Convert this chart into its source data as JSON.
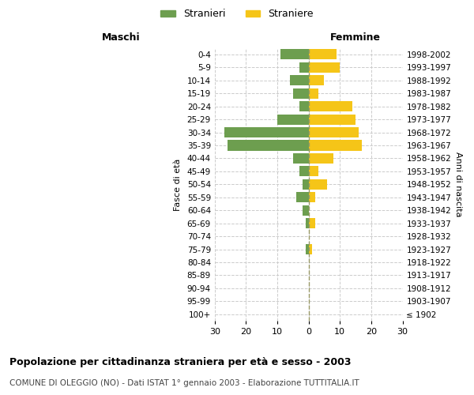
{
  "age_groups": [
    "100+",
    "95-99",
    "90-94",
    "85-89",
    "80-84",
    "75-79",
    "70-74",
    "65-69",
    "60-64",
    "55-59",
    "50-54",
    "45-49",
    "40-44",
    "35-39",
    "30-34",
    "25-29",
    "20-24",
    "15-19",
    "10-14",
    "5-9",
    "0-4"
  ],
  "birth_years": [
    "≤ 1902",
    "1903-1907",
    "1908-1912",
    "1913-1917",
    "1918-1922",
    "1923-1927",
    "1928-1932",
    "1933-1937",
    "1938-1942",
    "1943-1947",
    "1948-1952",
    "1953-1957",
    "1958-1962",
    "1963-1967",
    "1968-1972",
    "1973-1977",
    "1978-1982",
    "1983-1987",
    "1988-1992",
    "1993-1997",
    "1998-2002"
  ],
  "males": [
    0,
    0,
    0,
    0,
    0,
    1,
    0,
    1,
    2,
    4,
    2,
    3,
    5,
    26,
    27,
    10,
    3,
    5,
    6,
    3,
    9
  ],
  "females": [
    0,
    0,
    0,
    0,
    0,
    1,
    0,
    2,
    0,
    2,
    6,
    3,
    8,
    17,
    16,
    15,
    14,
    3,
    5,
    10,
    9
  ],
  "male_color": "#6d9e4f",
  "female_color": "#f5c518",
  "male_label": "Stranieri",
  "female_label": "Straniere",
  "xlim": 30,
  "title": "Popolazione per cittadinanza straniera per età e sesso - 2003",
  "subtitle": "COMUNE DI OLEGGIO (NO) - Dati ISTAT 1° gennaio 2003 - Elaborazione TUTTITALIA.IT",
  "ylabel_left": "Fasce di età",
  "ylabel_right": "Anni di nascita",
  "header_left": "Maschi",
  "header_right": "Femmine",
  "background_color": "#ffffff",
  "grid_color": "#cccccc",
  "bar_height": 0.8
}
